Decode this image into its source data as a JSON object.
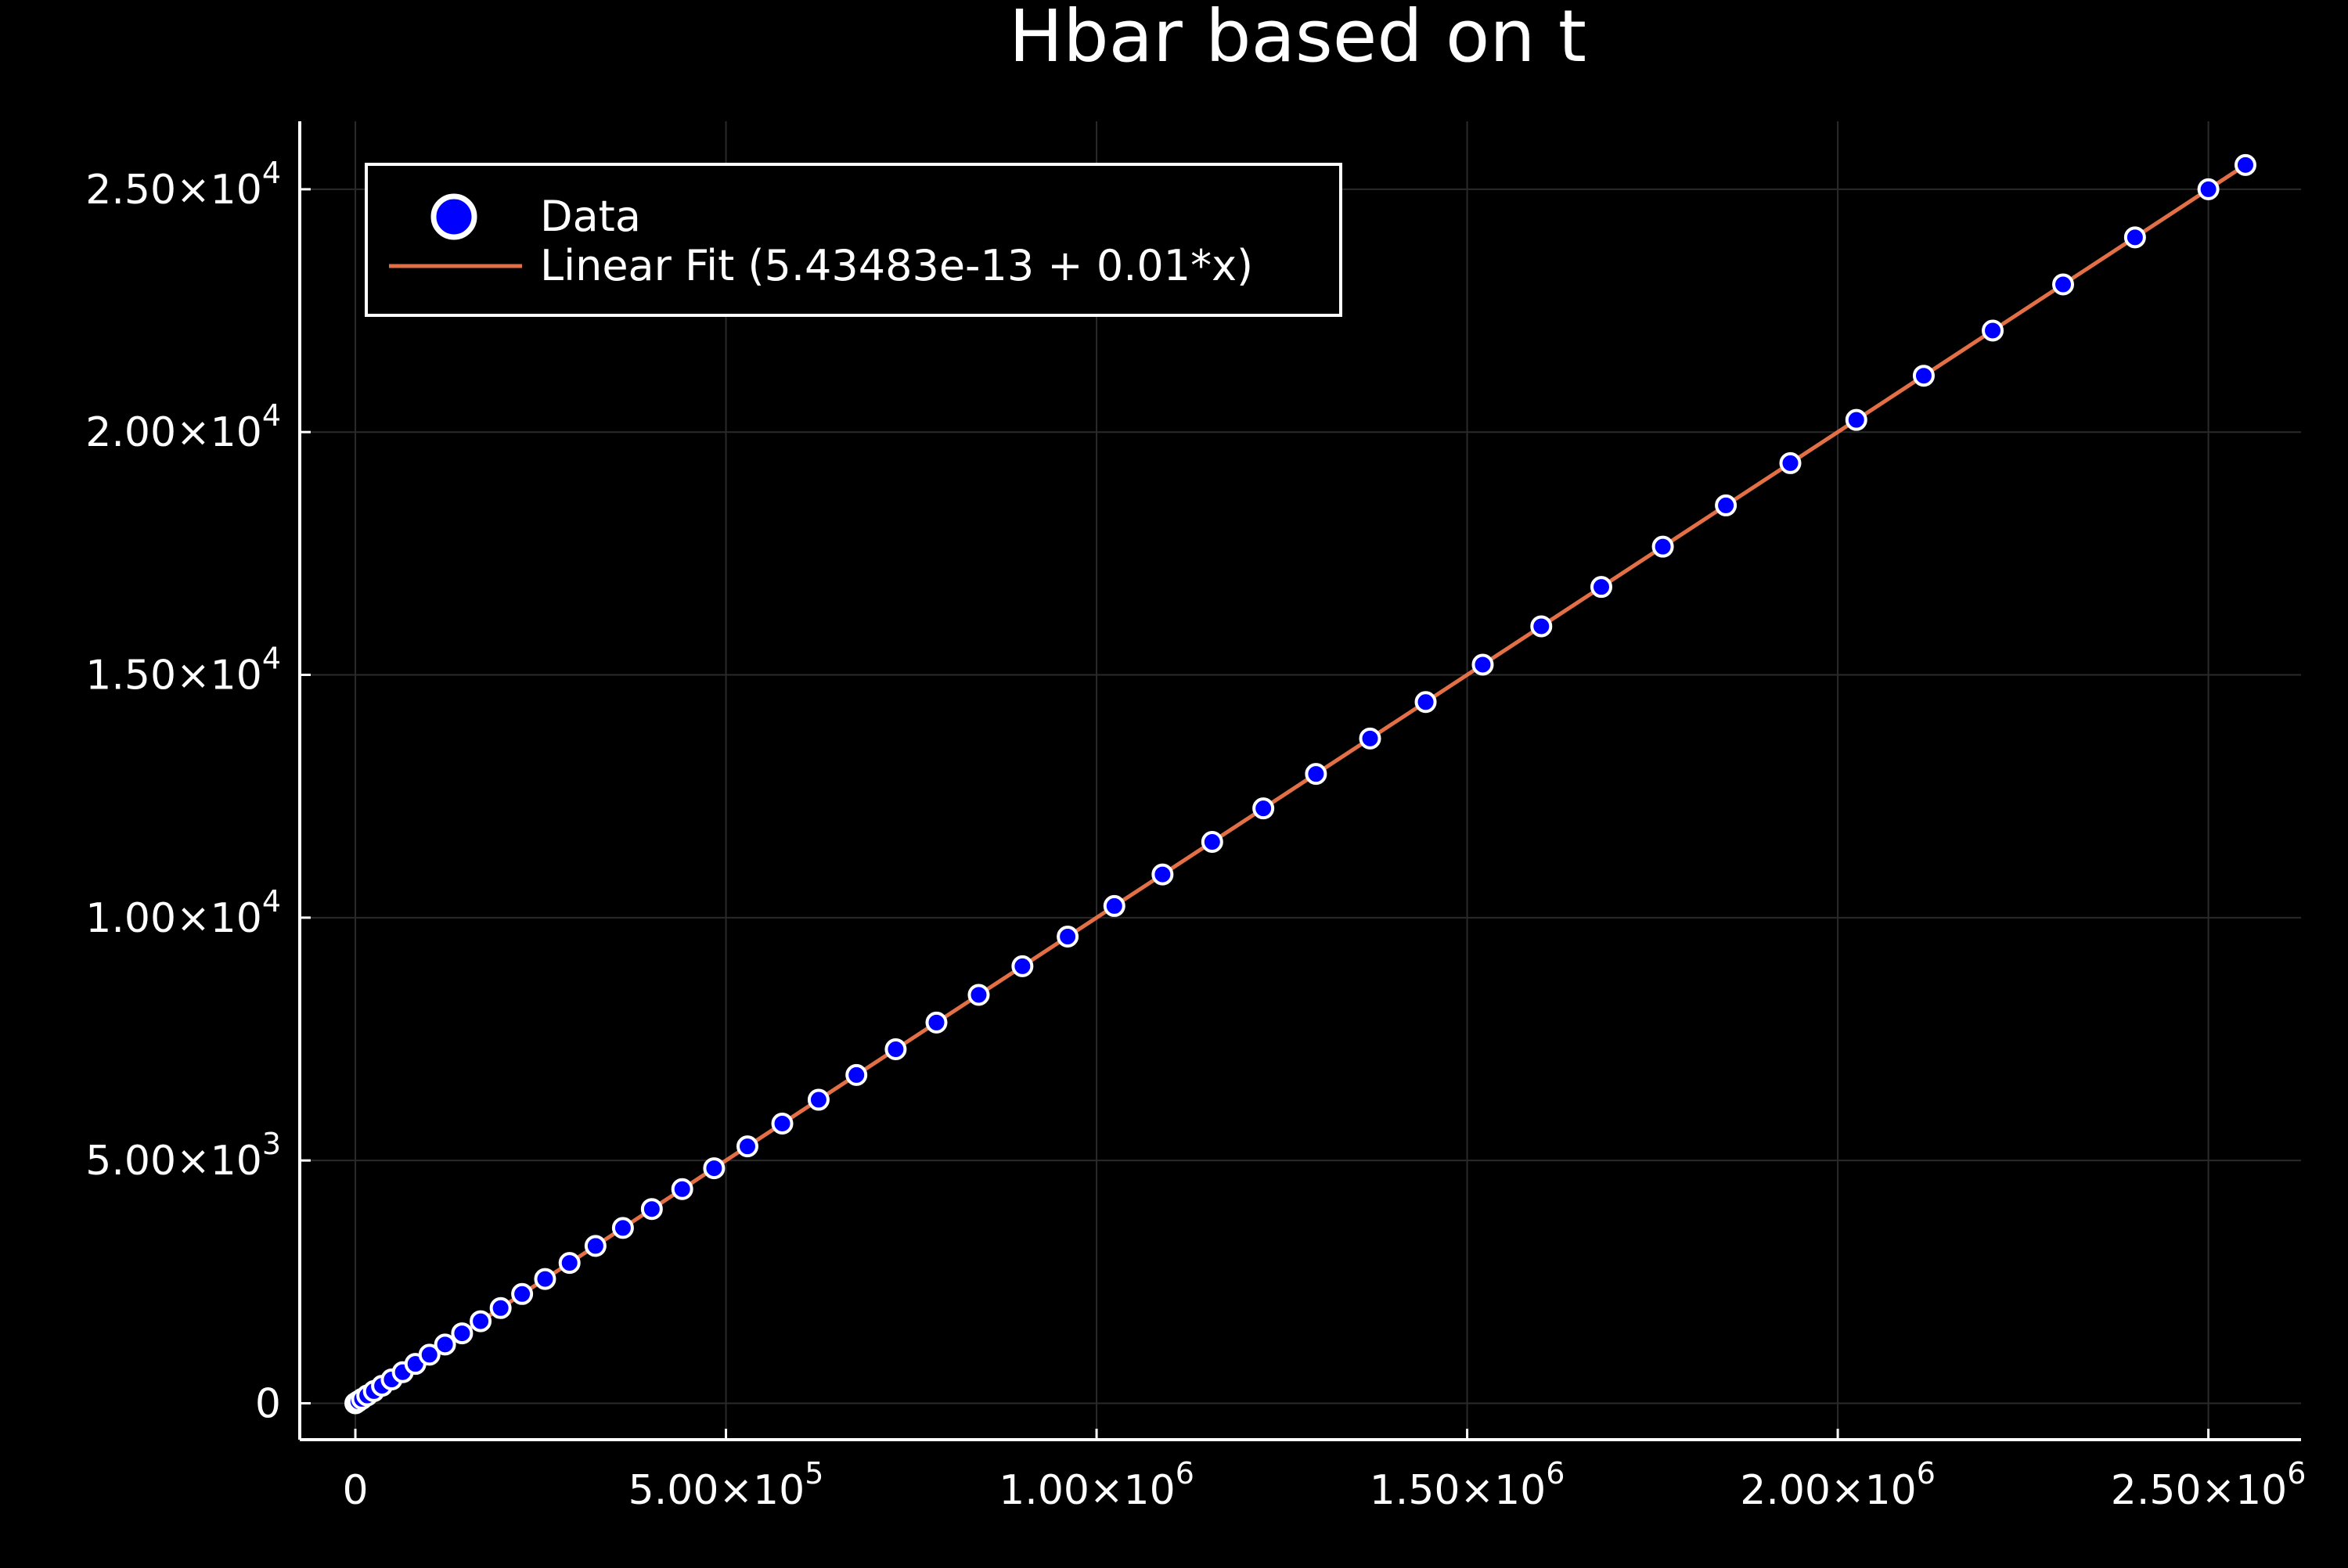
{
  "chart_data": {
    "type": "scatter",
    "title": "Hbar based on t",
    "xlabel": "",
    "ylabel": "",
    "xlim": [
      -75000,
      2625000
    ],
    "ylim": [
      -750,
      26400
    ],
    "grid": true,
    "legend_position": "top-left",
    "background": "#000000",
    "grid_color": "#2a2a2a",
    "axis_color": "#ffffff",
    "x_ticks": [
      {
        "value": 0,
        "mantissa": "0",
        "exp": ""
      },
      {
        "value": 500000,
        "mantissa": "5.00×10",
        "exp": "5"
      },
      {
        "value": 1000000,
        "mantissa": "1.00×10",
        "exp": "6"
      },
      {
        "value": 1500000,
        "mantissa": "1.50×10",
        "exp": "6"
      },
      {
        "value": 2000000,
        "mantissa": "2.00×10",
        "exp": "6"
      },
      {
        "value": 2500000,
        "mantissa": "2.50×10",
        "exp": "6"
      }
    ],
    "y_ticks": [
      {
        "value": 0,
        "mantissa": "0",
        "exp": ""
      },
      {
        "value": 5000,
        "mantissa": "5.00×10",
        "exp": "3"
      },
      {
        "value": 10000,
        "mantissa": "1.00×10",
        "exp": "4"
      },
      {
        "value": 15000,
        "mantissa": "1.50×10",
        "exp": "4"
      },
      {
        "value": 20000,
        "mantissa": "2.00×10",
        "exp": "4"
      },
      {
        "value": 25000,
        "mantissa": "2.50×10",
        "exp": "4"
      }
    ],
    "series": [
      {
        "name": "Data",
        "kind": "scatter",
        "marker_fill": "#0000ff",
        "marker_stroke": "#ffffff",
        "x": [
          0,
          1000,
          4000,
          9000,
          16000,
          25000,
          36000,
          49000,
          64000,
          81000,
          100000,
          121000,
          144000,
          169000,
          196000,
          225000,
          256000,
          289000,
          324000,
          361000,
          400000,
          441000,
          484000,
          529000,
          576000,
          625000,
          676000,
          729000,
          784000,
          841000,
          900000,
          961000,
          1024000,
          1089000,
          1156000,
          1225000,
          1296000,
          1369000,
          1444000,
          1521000,
          1600000,
          1681000,
          1764000,
          1849000,
          1936000,
          2025000,
          2116000,
          2209000,
          2304000,
          2401000,
          2500000,
          2550000
        ],
        "y": [
          0,
          10,
          40,
          90,
          160,
          250,
          360,
          490,
          640,
          810,
          1000,
          1210,
          1440,
          1690,
          1960,
          2250,
          2560,
          2890,
          3240,
          3610,
          4000,
          4410,
          4840,
          5290,
          5760,
          6250,
          6760,
          7290,
          7840,
          8410,
          9000,
          9610,
          10240,
          10890,
          11560,
          12250,
          12960,
          13690,
          14440,
          15210,
          16000,
          16810,
          17640,
          18490,
          19360,
          20250,
          21160,
          22090,
          23040,
          24010,
          25000,
          25500
        ]
      },
      {
        "name": "Linear Fit (5.43483e-13 + 0.01*x)",
        "kind": "line",
        "color": "#e26f46",
        "intercept": 5.43483e-13,
        "slope": 0.01,
        "x_range": [
          0,
          2550000
        ]
      }
    ]
  }
}
